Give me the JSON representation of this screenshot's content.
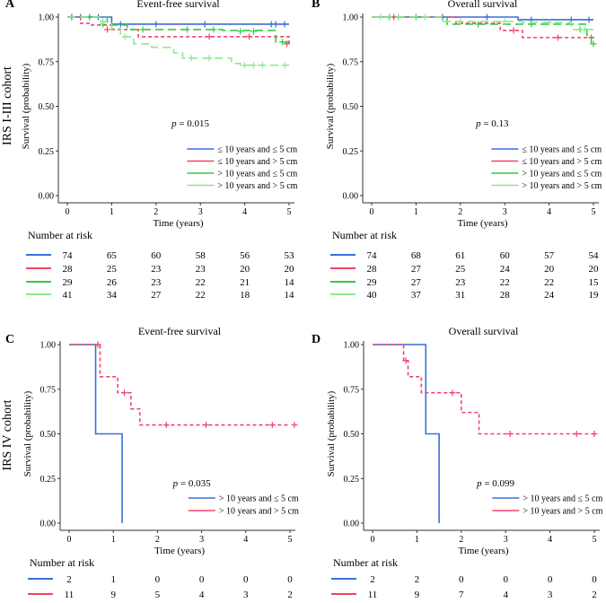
{
  "colors": {
    "blue": "#3a6fd8",
    "red": "#f0436b",
    "green": "#33cc44",
    "lightgreen": "#8fe890",
    "axis": "#333333",
    "text": "#000000"
  },
  "row_labels": [
    "IRS I-III cohort",
    "IRS IV cohort"
  ],
  "chart_data": [
    {
      "type": "line",
      "panel": "A",
      "title": "Event-free survival",
      "xlabel": "Time (years)",
      "ylabel": "Survival (probability)",
      "xlim": [
        0,
        5
      ],
      "ylim": [
        0,
        1
      ],
      "x_ticks": [
        "0",
        "1",
        "2",
        "3",
        "4",
        "5"
      ],
      "y_ticks": [
        "0.00",
        "0.25",
        "0.50",
        "0.75",
        "1.00"
      ],
      "p_value": "0.015",
      "legend_position": "bottom-right",
      "risk_title": "Number at risk",
      "series": [
        {
          "name": "≤ 10 years and ≤ 5 cm",
          "color": "blue",
          "dash": "solid",
          "steps": [
            [
              0,
              1.0
            ],
            [
              1.0,
              0.96
            ],
            [
              5.0,
              0.96
            ]
          ],
          "censor": [
            [
              0.1,
              1.0
            ],
            [
              0.3,
              1.0
            ],
            [
              0.5,
              1.0
            ],
            [
              0.7,
              1.0
            ],
            [
              1.2,
              0.96
            ],
            [
              2.0,
              0.96
            ],
            [
              3.1,
              0.96
            ],
            [
              4.6,
              0.96
            ],
            [
              4.7,
              0.96
            ],
            [
              4.9,
              0.96
            ]
          ],
          "risk": [
            "74",
            "65",
            "60",
            "58",
            "56",
            "53"
          ]
        },
        {
          "name": "≤ 10 years and > 5 cm",
          "color": "red",
          "dash": "short",
          "steps": [
            [
              0,
              1.0
            ],
            [
              0.3,
              0.965
            ],
            [
              0.55,
              0.955
            ],
            [
              1.0,
              0.93
            ],
            [
              1.6,
              0.89
            ],
            [
              5.0,
              0.85
            ]
          ],
          "censor": [
            [
              0.9,
              0.93
            ],
            [
              3.2,
              0.89
            ],
            [
              4.1,
              0.89
            ],
            [
              4.95,
              0.85
            ]
          ],
          "risk": [
            "28",
            "25",
            "23",
            "23",
            "20",
            "20"
          ]
        },
        {
          "name": "> 10 years and ≤ 5 cm",
          "color": "green",
          "dash": "long",
          "steps": [
            [
              0,
              1.0
            ],
            [
              0.9,
              0.96
            ],
            [
              1.0,
              0.955
            ],
            [
              1.35,
              0.93
            ],
            [
              3.5,
              0.925
            ],
            [
              4.7,
              0.86
            ],
            [
              5.0,
              0.86
            ]
          ],
          "censor": [
            [
              0.5,
              1.0
            ],
            [
              0.8,
              0.96
            ],
            [
              1.7,
              0.93
            ],
            [
              2.7,
              0.93
            ],
            [
              3.3,
              0.93
            ],
            [
              3.9,
              0.92
            ],
            [
              4.2,
              0.92
            ],
            [
              4.85,
              0.86
            ]
          ],
          "risk": [
            "29",
            "26",
            "23",
            "22",
            "21",
            "14"
          ]
        },
        {
          "name": "> 10 years and > 5 cm",
          "color": "lightgreen",
          "dash": "long",
          "steps": [
            [
              0,
              1.0
            ],
            [
              0.75,
              0.975
            ],
            [
              1.0,
              0.935
            ],
            [
              1.2,
              0.89
            ],
            [
              1.5,
              0.85
            ],
            [
              1.9,
              0.83
            ],
            [
              2.4,
              0.8
            ],
            [
              2.6,
              0.77
            ],
            [
              3.7,
              0.74
            ],
            [
              3.9,
              0.73
            ],
            [
              5.0,
              0.73
            ]
          ],
          "censor": [
            [
              0.8,
              0.975
            ],
            [
              1.3,
              0.89
            ],
            [
              2.8,
              0.77
            ],
            [
              3.2,
              0.77
            ],
            [
              4.0,
              0.73
            ],
            [
              4.2,
              0.73
            ],
            [
              4.4,
              0.73
            ],
            [
              4.9,
              0.73
            ]
          ],
          "risk": [
            "41",
            "34",
            "27",
            "22",
            "18",
            "14"
          ]
        }
      ]
    },
    {
      "type": "line",
      "panel": "B",
      "title": "Overall survival",
      "xlabel": "Time (years)",
      "ylabel": "Survival (probability)",
      "xlim": [
        0,
        5
      ],
      "ylim": [
        0,
        1
      ],
      "x_ticks": [
        "0",
        "1",
        "2",
        "3",
        "4",
        "5"
      ],
      "y_ticks": [
        "0.00",
        "0.25",
        "0.50",
        "0.75",
        "1.00"
      ],
      "p_value": "0.13",
      "legend_position": "bottom-right",
      "risk_title": "Number at risk",
      "series": [
        {
          "name": "≤ 10 years and ≤ 5 cm",
          "color": "blue",
          "dash": "solid",
          "steps": [
            [
              0,
              1.0
            ],
            [
              3.3,
              0.985
            ],
            [
              5.0,
              0.985
            ]
          ],
          "censor": [
            [
              0.6,
              1.0
            ],
            [
              1.6,
              1.0
            ],
            [
              2.6,
              1.0
            ],
            [
              3.6,
              0.985
            ],
            [
              4.5,
              0.985
            ],
            [
              4.9,
              0.985
            ]
          ],
          "risk": [
            "74",
            "68",
            "61",
            "60",
            "57",
            "54"
          ]
        },
        {
          "name": "≤ 10 years and > 5 cm",
          "color": "red",
          "dash": "short",
          "steps": [
            [
              0,
              1.0
            ],
            [
              1.9,
              0.965
            ],
            [
              2.9,
              0.925
            ],
            [
              3.4,
              0.885
            ],
            [
              5.0,
              0.885
            ]
          ],
          "censor": [
            [
              0.5,
              1.0
            ],
            [
              3.2,
              0.925
            ],
            [
              4.2,
              0.885
            ],
            [
              4.95,
              0.885
            ]
          ],
          "risk": [
            "28",
            "27",
            "25",
            "24",
            "20",
            "20"
          ]
        },
        {
          "name": "> 10 years and ≤ 5 cm",
          "color": "green",
          "dash": "long",
          "steps": [
            [
              0,
              1.0
            ],
            [
              1.7,
              0.96
            ],
            [
              4.85,
              0.9
            ],
            [
              4.95,
              0.85
            ],
            [
              5.0,
              0.85
            ]
          ],
          "censor": [
            [
              0.4,
              1.0
            ],
            [
              1.0,
              1.0
            ],
            [
              2.4,
              0.96
            ],
            [
              3.6,
              0.96
            ],
            [
              4.7,
              0.93
            ],
            [
              5.0,
              0.85
            ]
          ],
          "risk": [
            "29",
            "27",
            "23",
            "22",
            "22",
            "15"
          ]
        },
        {
          "name": "> 10 years and > 5 cm",
          "color": "lightgreen",
          "dash": "long",
          "steps": [
            [
              0,
              1.0
            ],
            [
              1.6,
              0.975
            ],
            [
              3.4,
              0.97
            ],
            [
              4.5,
              0.93
            ],
            [
              5.0,
              0.93
            ]
          ],
          "censor": [
            [
              0.2,
              1.0
            ],
            [
              0.6,
              1.0
            ],
            [
              1.2,
              1.0
            ],
            [
              2.0,
              0.975
            ],
            [
              3.0,
              0.975
            ],
            [
              4.0,
              0.97
            ],
            [
              4.8,
              0.93
            ]
          ],
          "risk": [
            "40",
            "37",
            "31",
            "28",
            "24",
            "19"
          ]
        }
      ]
    },
    {
      "type": "line",
      "panel": "C",
      "title": "Event-free survival",
      "xlabel": "Time (years)",
      "ylabel": "Survival (probability)",
      "xlim": [
        0,
        5
      ],
      "ylim": [
        0,
        1
      ],
      "x_ticks": [
        "0",
        "1",
        "2",
        "3",
        "4",
        "5"
      ],
      "y_ticks": [
        "0.00",
        "0.25",
        "0.50",
        "0.75",
        "1.00"
      ],
      "p_value": "0.035",
      "legend_position": "bottom-right",
      "risk_title": "Number at risk",
      "series": [
        {
          "name": "> 10 years and ≤ 5 cm",
          "color": "blue",
          "dash": "solid",
          "steps": [
            [
              0,
              1.0
            ],
            [
              0.6,
              0.5
            ],
            [
              1.2,
              0.0
            ]
          ],
          "censor": [],
          "risk": [
            "2",
            "1",
            "0",
            "0",
            "0",
            "0"
          ]
        },
        {
          "name": "> 10 years and > 5 cm",
          "color": "red",
          "dash": "short",
          "steps": [
            [
              0,
              1.0
            ],
            [
              0.7,
              0.82
            ],
            [
              1.1,
              0.73
            ],
            [
              1.4,
              0.64
            ],
            [
              1.6,
              0.55
            ],
            [
              5.0,
              0.55
            ]
          ],
          "censor": [
            [
              0.65,
              1.0
            ],
            [
              1.25,
              0.73
            ],
            [
              2.2,
              0.55
            ],
            [
              3.1,
              0.55
            ],
            [
              4.6,
              0.55
            ],
            [
              5.1,
              0.55
            ]
          ],
          "risk": [
            "11",
            "9",
            "5",
            "4",
            "3",
            "2"
          ]
        }
      ]
    },
    {
      "type": "line",
      "panel": "D",
      "title": "Overall survival",
      "xlabel": "Time (years)",
      "ylabel": "Survival (probability)",
      "xlim": [
        0,
        5
      ],
      "ylim": [
        0,
        1
      ],
      "x_ticks": [
        "0",
        "1",
        "2",
        "3",
        "4",
        "5"
      ],
      "y_ticks": [
        "0.00",
        "0.25",
        "0.50",
        "0.75",
        "1.00"
      ],
      "p_value": "0.099",
      "legend_position": "bottom-right",
      "risk_title": "Number at risk",
      "series": [
        {
          "name": "> 10 years and ≤ 5 cm",
          "color": "blue",
          "dash": "solid",
          "steps": [
            [
              0,
              1.0
            ],
            [
              1.2,
              0.5
            ],
            [
              1.5,
              0.0
            ]
          ],
          "censor": [],
          "risk": [
            "2",
            "2",
            "0",
            "0",
            "0",
            "0"
          ]
        },
        {
          "name": "> 10 years and > 5 cm",
          "color": "red",
          "dash": "short",
          "steps": [
            [
              0,
              1.0
            ],
            [
              0.7,
              0.91
            ],
            [
              0.8,
              0.82
            ],
            [
              1.1,
              0.73
            ],
            [
              2.0,
              0.62
            ],
            [
              2.4,
              0.5
            ],
            [
              5.0,
              0.5
            ]
          ],
          "censor": [
            [
              0.75,
              0.91
            ],
            [
              1.8,
              0.73
            ],
            [
              3.1,
              0.5
            ],
            [
              4.6,
              0.5
            ],
            [
              5.0,
              0.5
            ]
          ],
          "risk": [
            "11",
            "9",
            "7",
            "4",
            "3",
            "2"
          ]
        }
      ]
    }
  ]
}
